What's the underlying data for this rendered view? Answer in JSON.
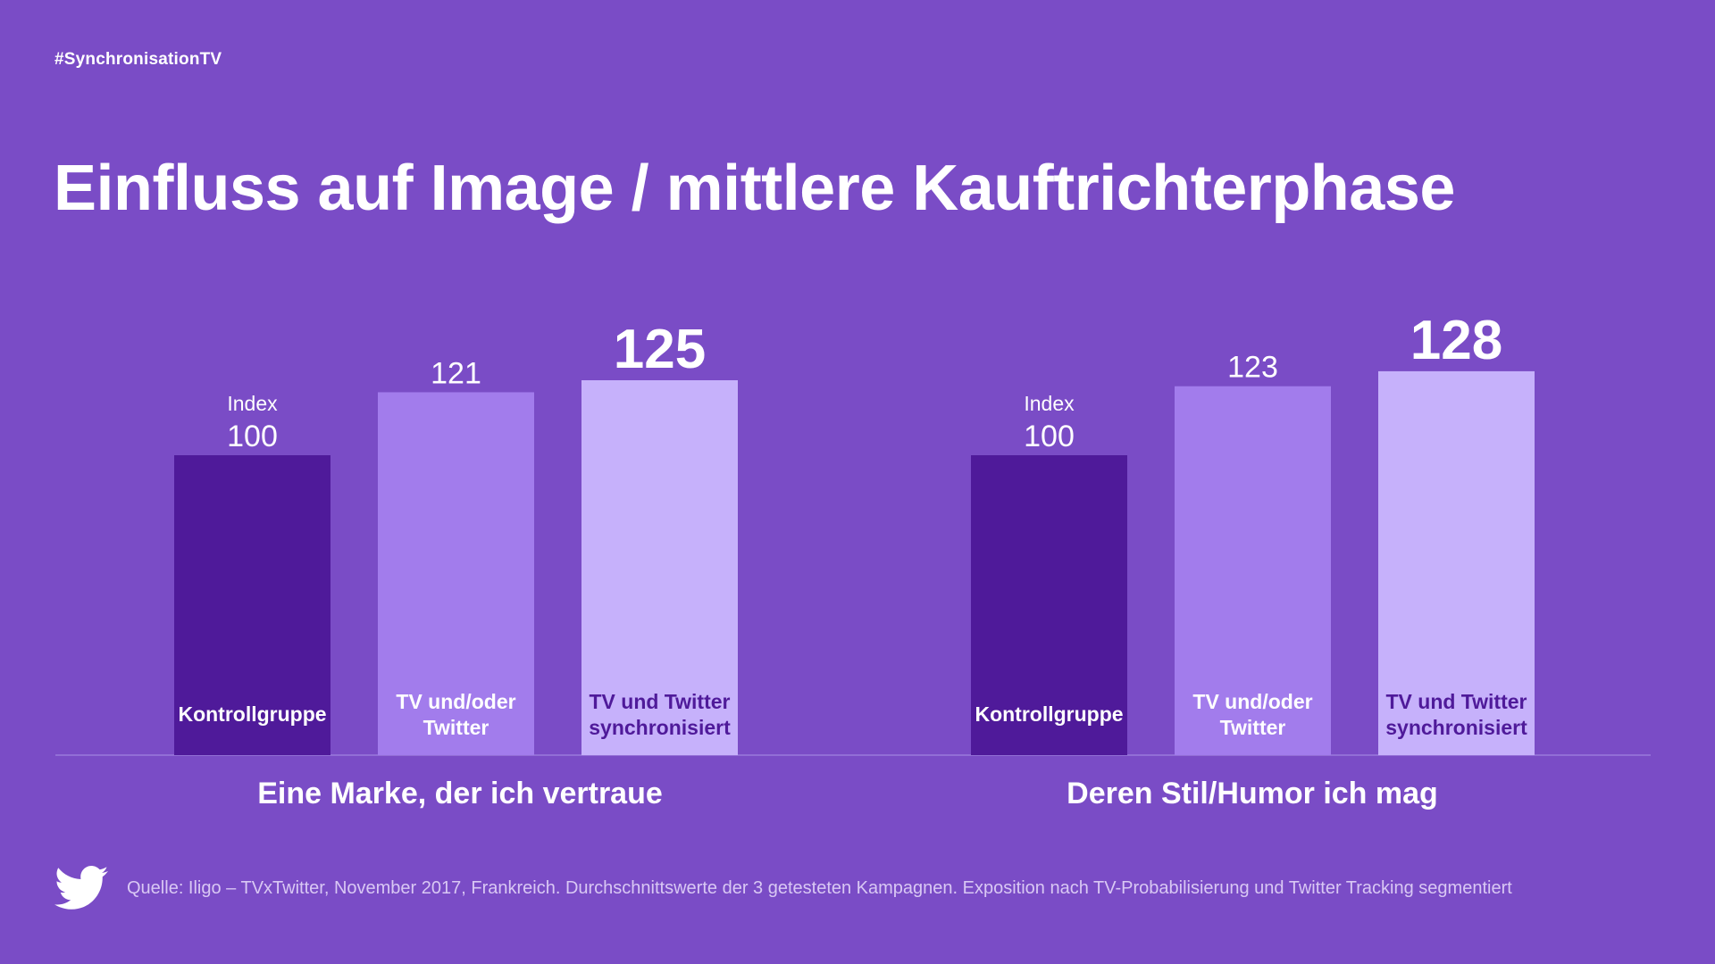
{
  "header": {
    "hashtag": "#SynchronisationTV",
    "title": "Einfluss auf Image / mittlere Kauftrichterphase"
  },
  "footer": {
    "source": "Quelle: Iligo – TVxTwitter, November 2017, Frankreich. Durchschnittswerte der 3 getesteten Kampagnen. Exposition nach TV-Probabilisierung und Twitter Tracking segmentiert",
    "logo_icon": "twitter-bird-icon"
  },
  "colors": {
    "background": "#7a4cc6",
    "kontrollgruppe": "#4f1a9a",
    "tv_oder_twitter": "#a27cec",
    "tv_und_twitter": "#c6b1fb",
    "label_dark": "#4f1a9a",
    "label_light": "#ffffff"
  },
  "chart_data": [
    {
      "type": "bar",
      "group_label": "Eine Marke, der ich vertraue",
      "index_label": "Index",
      "categories": [
        "Kontrollgruppe",
        "TV und/oder Twitter",
        "TV und Twitter synchronisiert"
      ],
      "category_lines": [
        [
          "Kontrollgruppe"
        ],
        [
          "TV und/oder",
          "Twitter"
        ],
        [
          "TV und Twitter",
          "synchronisiert"
        ]
      ],
      "values": [
        100,
        121,
        125
      ],
      "value_labels": [
        "100",
        "121",
        "125"
      ]
    },
    {
      "type": "bar",
      "group_label": "Deren Stil/Humor ich mag",
      "index_label": "Index",
      "categories": [
        "Kontrollgruppe",
        "TV und/oder Twitter",
        "TV und Twitter synchronisiert"
      ],
      "category_lines": [
        [
          "Kontrollgruppe"
        ],
        [
          "TV und/oder",
          "Twitter"
        ],
        [
          "TV und Twitter",
          "synchronisiert"
        ]
      ],
      "values": [
        100,
        123,
        128
      ],
      "value_labels": [
        "100",
        "123",
        "128"
      ]
    }
  ]
}
